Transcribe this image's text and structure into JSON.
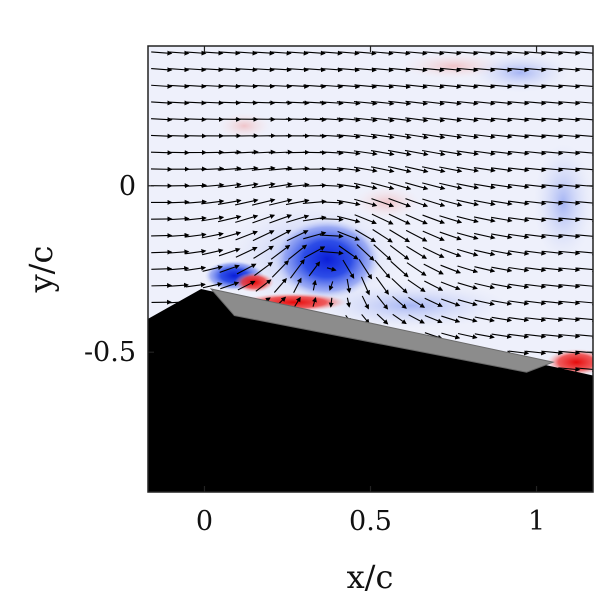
{
  "chart_data": {
    "type": "vector-field",
    "title": "",
    "xlabel": "x/c",
    "ylabel": "y/c",
    "xlim": [
      -0.17,
      1.17
    ],
    "ylim": [
      -0.92,
      0.42
    ],
    "x_ticks": [
      0,
      0.5,
      1
    ],
    "x_tick_labels": [
      "0",
      "0.5",
      "1"
    ],
    "y_ticks": [
      0,
      -0.5
    ],
    "y_tick_labels": [
      "0",
      "-0.5"
    ],
    "grid": false,
    "legend": "none",
    "colors": {
      "negative_vorticity": "#1f3fe0",
      "positive_vorticity": "#e01010",
      "solid_body": "#000000",
      "airfoil_surface": "#8c8c8c",
      "vector_arrows": "#000000"
    },
    "vortex": {
      "center_x": 0.38,
      "center_y": -0.22,
      "sense": "clockwise"
    },
    "body_outline": [
      [
        -0.17,
        -0.4
      ],
      [
        -0.01,
        -0.31
      ],
      [
        1.17,
        -0.57
      ],
      [
        1.17,
        -0.92
      ],
      [
        -0.17,
        -0.92
      ]
    ],
    "airfoil_plate": [
      [
        0.02,
        -0.31
      ],
      [
        0.09,
        -0.39
      ],
      [
        0.97,
        -0.56
      ],
      [
        1.05,
        -0.53
      ]
    ]
  }
}
